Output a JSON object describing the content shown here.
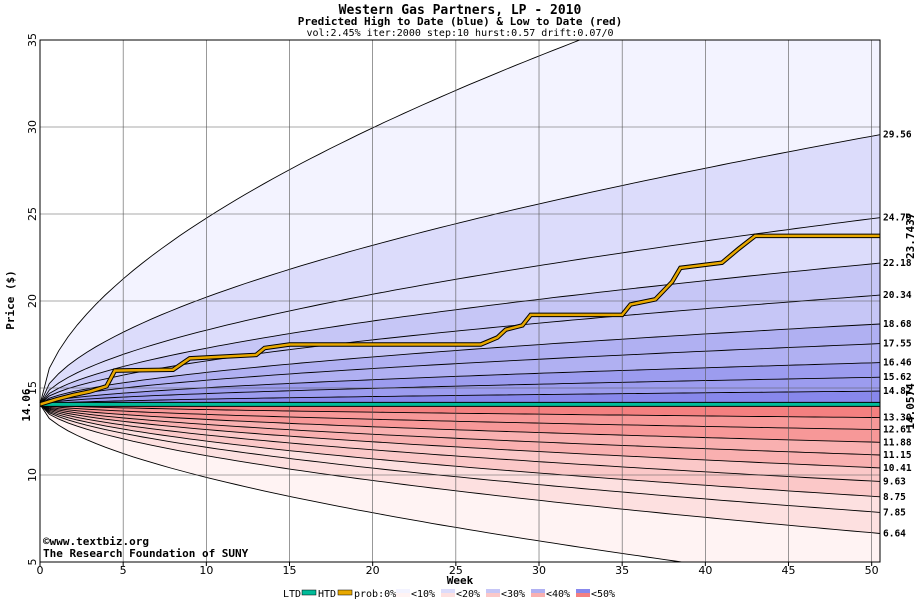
{
  "chart_data": {
    "type": "area",
    "title": "Western Gas Partners, LP - 2010",
    "subtitle": "Predicted High to Date (blue) &  Low to Date (red)",
    "params": "vol:2.45% iter:2000 step:10 hurst:0.57 drift:0.07/0",
    "xlabel": "Week",
    "ylabel": "Price ($)",
    "xlim": [
      0,
      50.5
    ],
    "ylim": [
      5,
      35
    ],
    "xticks": [
      0,
      5,
      10,
      15,
      20,
      25,
      30,
      35,
      40,
      45,
      50
    ],
    "yticks": [
      5,
      10,
      15,
      20,
      25,
      30,
      35
    ],
    "grid": true,
    "start_price": 14.06,
    "start_price_label": "14.06",
    "ltd_value": 14.0574,
    "ltd_label": "14.0574",
    "htd_value": 23.7437,
    "htd_label": "23.7437",
    "high_percentiles": [
      {
        "label": "29.56",
        "end": 29.56
      },
      {
        "label": "24.79",
        "end": 24.79
      },
      {
        "label": "22.18",
        "end": 22.18
      },
      {
        "label": "20.34",
        "end": 20.34
      },
      {
        "label": "18.68",
        "end": 18.68
      },
      {
        "label": "17.55",
        "end": 17.55
      },
      {
        "label": "16.46",
        "end": 16.46
      },
      {
        "label": "15.62",
        "end": 15.62
      },
      {
        "label": "14.82",
        "end": 14.82
      }
    ],
    "low_percentiles": [
      {
        "label": "13.30",
        "end": 13.3
      },
      {
        "label": "12.61",
        "end": 12.61
      },
      {
        "label": "11.88",
        "end": 11.88
      },
      {
        "label": "11.15",
        "end": 11.15
      },
      {
        "label": "10.41",
        "end": 10.41
      },
      {
        "label": "9.63",
        "end": 9.63
      },
      {
        "label": "8.75",
        "end": 8.75
      },
      {
        "label": "7.85",
        "end": 7.85
      },
      {
        "label": "6.64",
        "end": 6.64
      }
    ],
    "outer_high_end": 41,
    "outer_low_end": 3.5,
    "htd_path": [
      [
        0,
        14.06
      ],
      [
        1,
        14.35
      ],
      [
        2,
        14.6
      ],
      [
        3,
        14.8
      ],
      [
        4,
        15.1
      ],
      [
        4.5,
        16.0
      ],
      [
        8,
        16.05
      ],
      [
        9,
        16.7
      ],
      [
        13,
        16.9
      ],
      [
        13.5,
        17.3
      ],
      [
        15,
        17.5
      ],
      [
        26.5,
        17.5
      ],
      [
        27.5,
        17.9
      ],
      [
        28,
        18.35
      ],
      [
        29,
        18.6
      ],
      [
        29.5,
        19.2
      ],
      [
        35,
        19.2
      ],
      [
        35.5,
        19.8
      ],
      [
        37,
        20.1
      ],
      [
        38,
        21.1
      ],
      [
        38.5,
        21.9
      ],
      [
        41,
        22.2
      ],
      [
        42,
        23.0
      ],
      [
        43,
        23.74
      ],
      [
        50.5,
        23.74
      ]
    ],
    "colors": {
      "ltd": "#00bb99",
      "htd": "#e8a800",
      "htd_label": "#a07800",
      "ltd_label": "#009977",
      "title_blue": "#000080",
      "blue_bands": [
        "#f3f3ff",
        "#dcdcfb",
        "#c6c6f6",
        "#b0b0f2",
        "#9c9cef",
        "#8888ec"
      ],
      "red_bands": [
        "#fff3f3",
        "#fde0e0",
        "#fbc8c8",
        "#f9b0b0",
        "#f79898",
        "#f48080"
      ]
    }
  },
  "footer": {
    "copyright": "©www.textbiz.org",
    "org": "The Research Foundation of SUNY"
  },
  "legend": {
    "ltd_label": "LTD",
    "htd_label": "HTD",
    "prob_label": "prob:0%",
    "items": [
      "<10%",
      "<20%",
      "<30%",
      "<40%",
      "<50%"
    ]
  }
}
